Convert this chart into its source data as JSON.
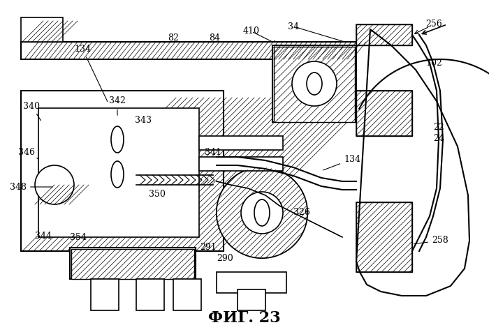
{
  "title": "ФИГ. 23",
  "title_fontsize": 16,
  "background_color": "#ffffff",
  "line_color": "#000000",
  "labels": {
    "134_top": [
      190,
      68,
      "134"
    ],
    "82": [
      248,
      55,
      "82"
    ],
    "84": [
      307,
      58,
      "84"
    ],
    "410": [
      355,
      45,
      "410"
    ],
    "34": [
      420,
      38,
      "34"
    ],
    "256": [
      610,
      35,
      "256"
    ],
    "102": [
      615,
      95,
      "102"
    ],
    "22": [
      620,
      185,
      "22"
    ],
    "24": [
      620,
      200,
      "24"
    ],
    "340": [
      45,
      148,
      "340"
    ],
    "342": [
      168,
      148,
      "342"
    ],
    "343": [
      200,
      175,
      "343"
    ],
    "346": [
      38,
      218,
      "346"
    ],
    "341": [
      303,
      218,
      "341"
    ],
    "134_mid": [
      492,
      228,
      "134"
    ],
    "348": [
      38,
      268,
      "348"
    ],
    "350": [
      222,
      278,
      "350"
    ],
    "326": [
      430,
      305,
      "326"
    ],
    "344": [
      62,
      338,
      "344"
    ],
    "354": [
      105,
      340,
      "354"
    ],
    "291": [
      295,
      355,
      "291"
    ],
    "290": [
      318,
      372,
      "290"
    ],
    "258": [
      615,
      348,
      "258"
    ]
  }
}
